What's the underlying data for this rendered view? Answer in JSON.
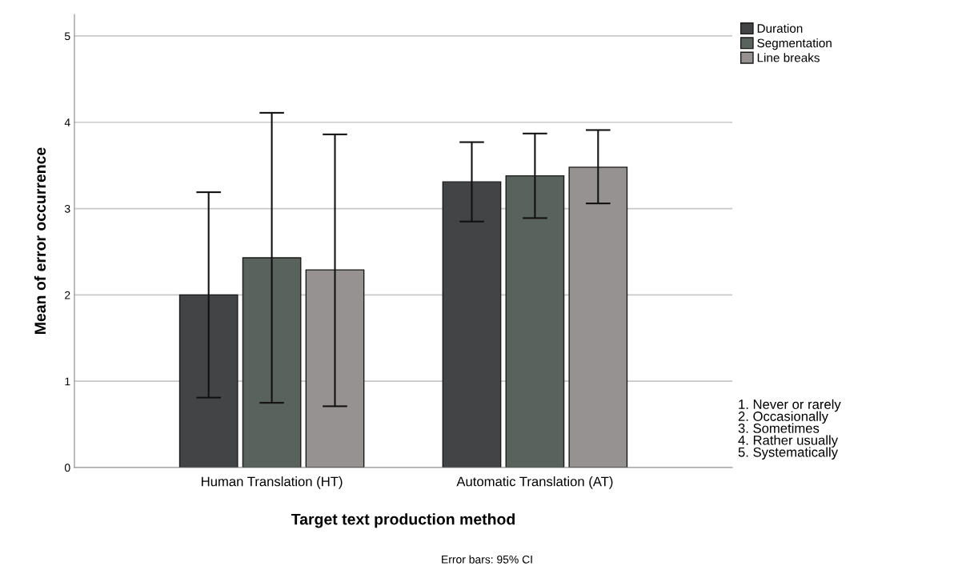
{
  "chart_data": {
    "type": "bar",
    "xlabel": "Target text production method",
    "ylabel": "Mean of error occurrence",
    "categories": [
      "Human Translation (HT)",
      "Automatic Translation (AT)"
    ],
    "series": [
      {
        "name": "Duration",
        "color": "#434446",
        "values": [
          2.0,
          3.31
        ],
        "errors": [
          [
            0.81,
            3.19
          ],
          [
            2.85,
            3.77
          ]
        ]
      },
      {
        "name": "Segmentation",
        "color": "#5a625d",
        "values": [
          2.43,
          3.38
        ],
        "errors": [
          [
            0.75,
            4.11
          ],
          [
            2.89,
            3.87
          ]
        ]
      },
      {
        "name": "Line breaks",
        "color": "#959291",
        "values": [
          2.29,
          3.48
        ],
        "errors": [
          [
            0.71,
            3.86
          ],
          [
            3.06,
            3.91
          ]
        ]
      }
    ],
    "ylim": [
      0,
      5.25
    ],
    "yticks": [
      0,
      1,
      2,
      3,
      4,
      5
    ],
    "grid": "y",
    "legend": "top right",
    "annotations": [
      "1. Never or rarely\n2. Occasionally\n3. Sometimes\n4. Rather usually\n5. Systematically",
      "Error bars: 95% CI"
    ]
  }
}
